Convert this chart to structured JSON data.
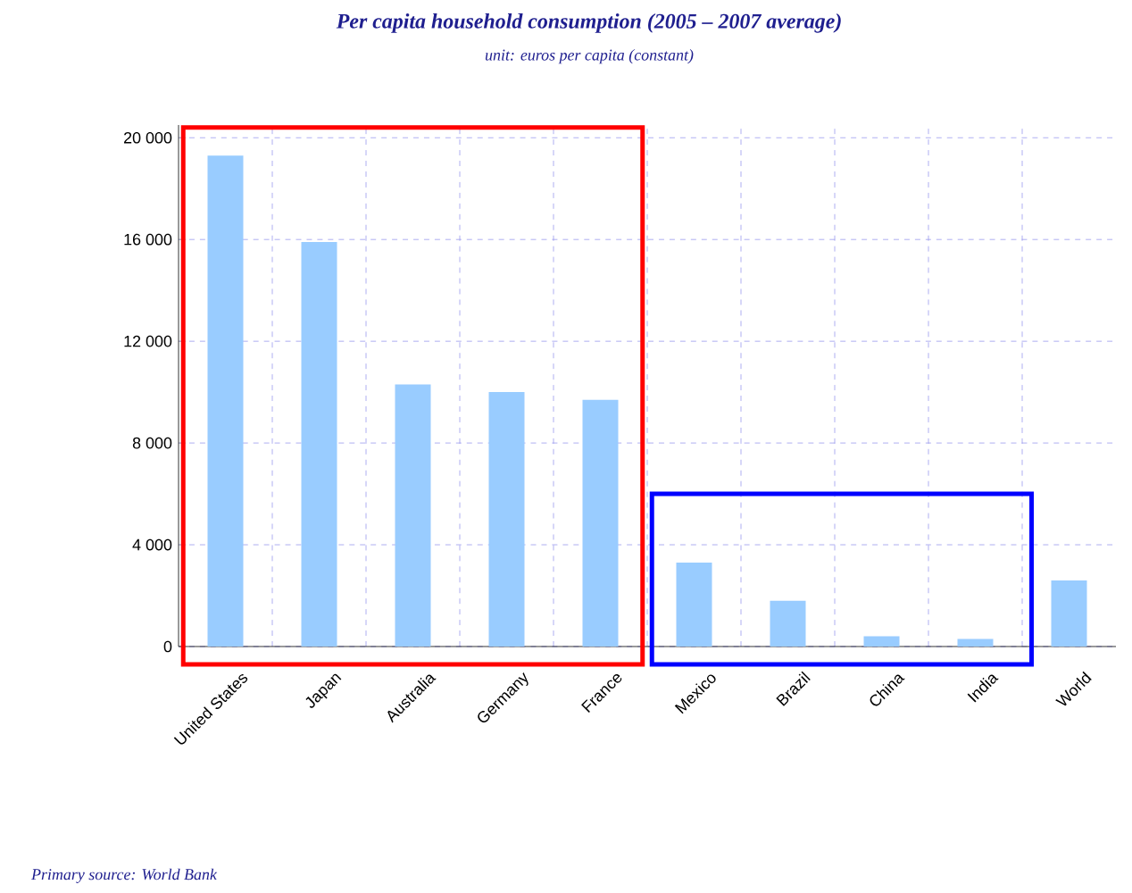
{
  "chart_data": {
    "type": "bar",
    "title": "Per capita household consumption (2005 – 2007 average)",
    "subtitle": "unit: euros per capita (constant)",
    "categories": [
      "United States",
      "Japan",
      "Australia",
      "Germany",
      "France",
      "Mexico",
      "Brazil",
      "China",
      "India",
      "World"
    ],
    "values": [
      19300,
      15900,
      10300,
      10000,
      9700,
      3300,
      1800,
      400,
      300,
      2600
    ],
    "color": "#99ccff",
    "ylim": [
      0,
      20500
    ],
    "yticks": [
      0,
      {
        "value": 4000,
        "label": "4 000"
      },
      {
        "value": 8000,
        "label": "8 000"
      },
      {
        "value": 12000,
        "label": "12 000"
      },
      {
        "value": 16000,
        "label": "16 000"
      },
      {
        "value": 20000,
        "label": "20 000"
      }
    ],
    "grid": true,
    "annotations": [
      "Primary source: World Bank"
    ]
  }
}
